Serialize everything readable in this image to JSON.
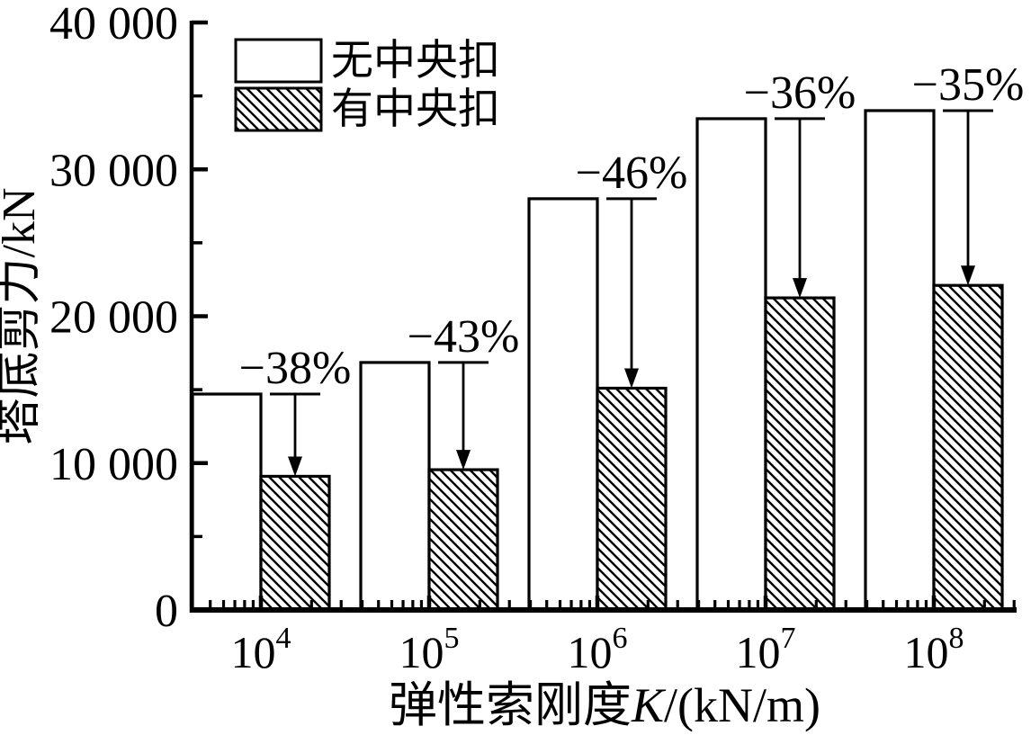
{
  "colors": {
    "ink": "#000000",
    "background": "#ffffff"
  },
  "chart_data": {
    "type": "bar",
    "title": "",
    "xlabel": "弹性索刚度K/(kN/m)",
    "xlabel_parts": {
      "cjk": "弹性索刚度",
      "var": "K",
      "unit": "/(kN/m)"
    },
    "ylabel": "塔底剪力/kN",
    "x_scale": "log-decades",
    "x_base": "10",
    "x_exponents": [
      "4",
      "5",
      "6",
      "7",
      "8"
    ],
    "x_categories": [
      "10⁴",
      "10⁵",
      "10⁶",
      "10⁷",
      "10⁸"
    ],
    "ylim": [
      0,
      40000
    ],
    "y_major_step": 10000,
    "y_minor_step": 5000,
    "y_tick_labels": [
      "0",
      "10 000",
      "20 000",
      "30 000",
      "40 000"
    ],
    "grid": false,
    "legend_position": "top-left",
    "series": [
      {
        "name": "无中央扣",
        "style": "open",
        "values": [
          14700,
          16850,
          28000,
          33450,
          34000
        ]
      },
      {
        "name": "有中央扣",
        "style": "hatched",
        "values": [
          9100,
          9550,
          15100,
          21250,
          22100
        ]
      }
    ],
    "annotations": [
      {
        "label": "−38%",
        "group": 0
      },
      {
        "label": "−43%",
        "group": 1
      },
      {
        "label": "−46%",
        "group": 2
      },
      {
        "label": "−36%",
        "group": 3
      },
      {
        "label": "−35%",
        "group": 4
      }
    ]
  }
}
